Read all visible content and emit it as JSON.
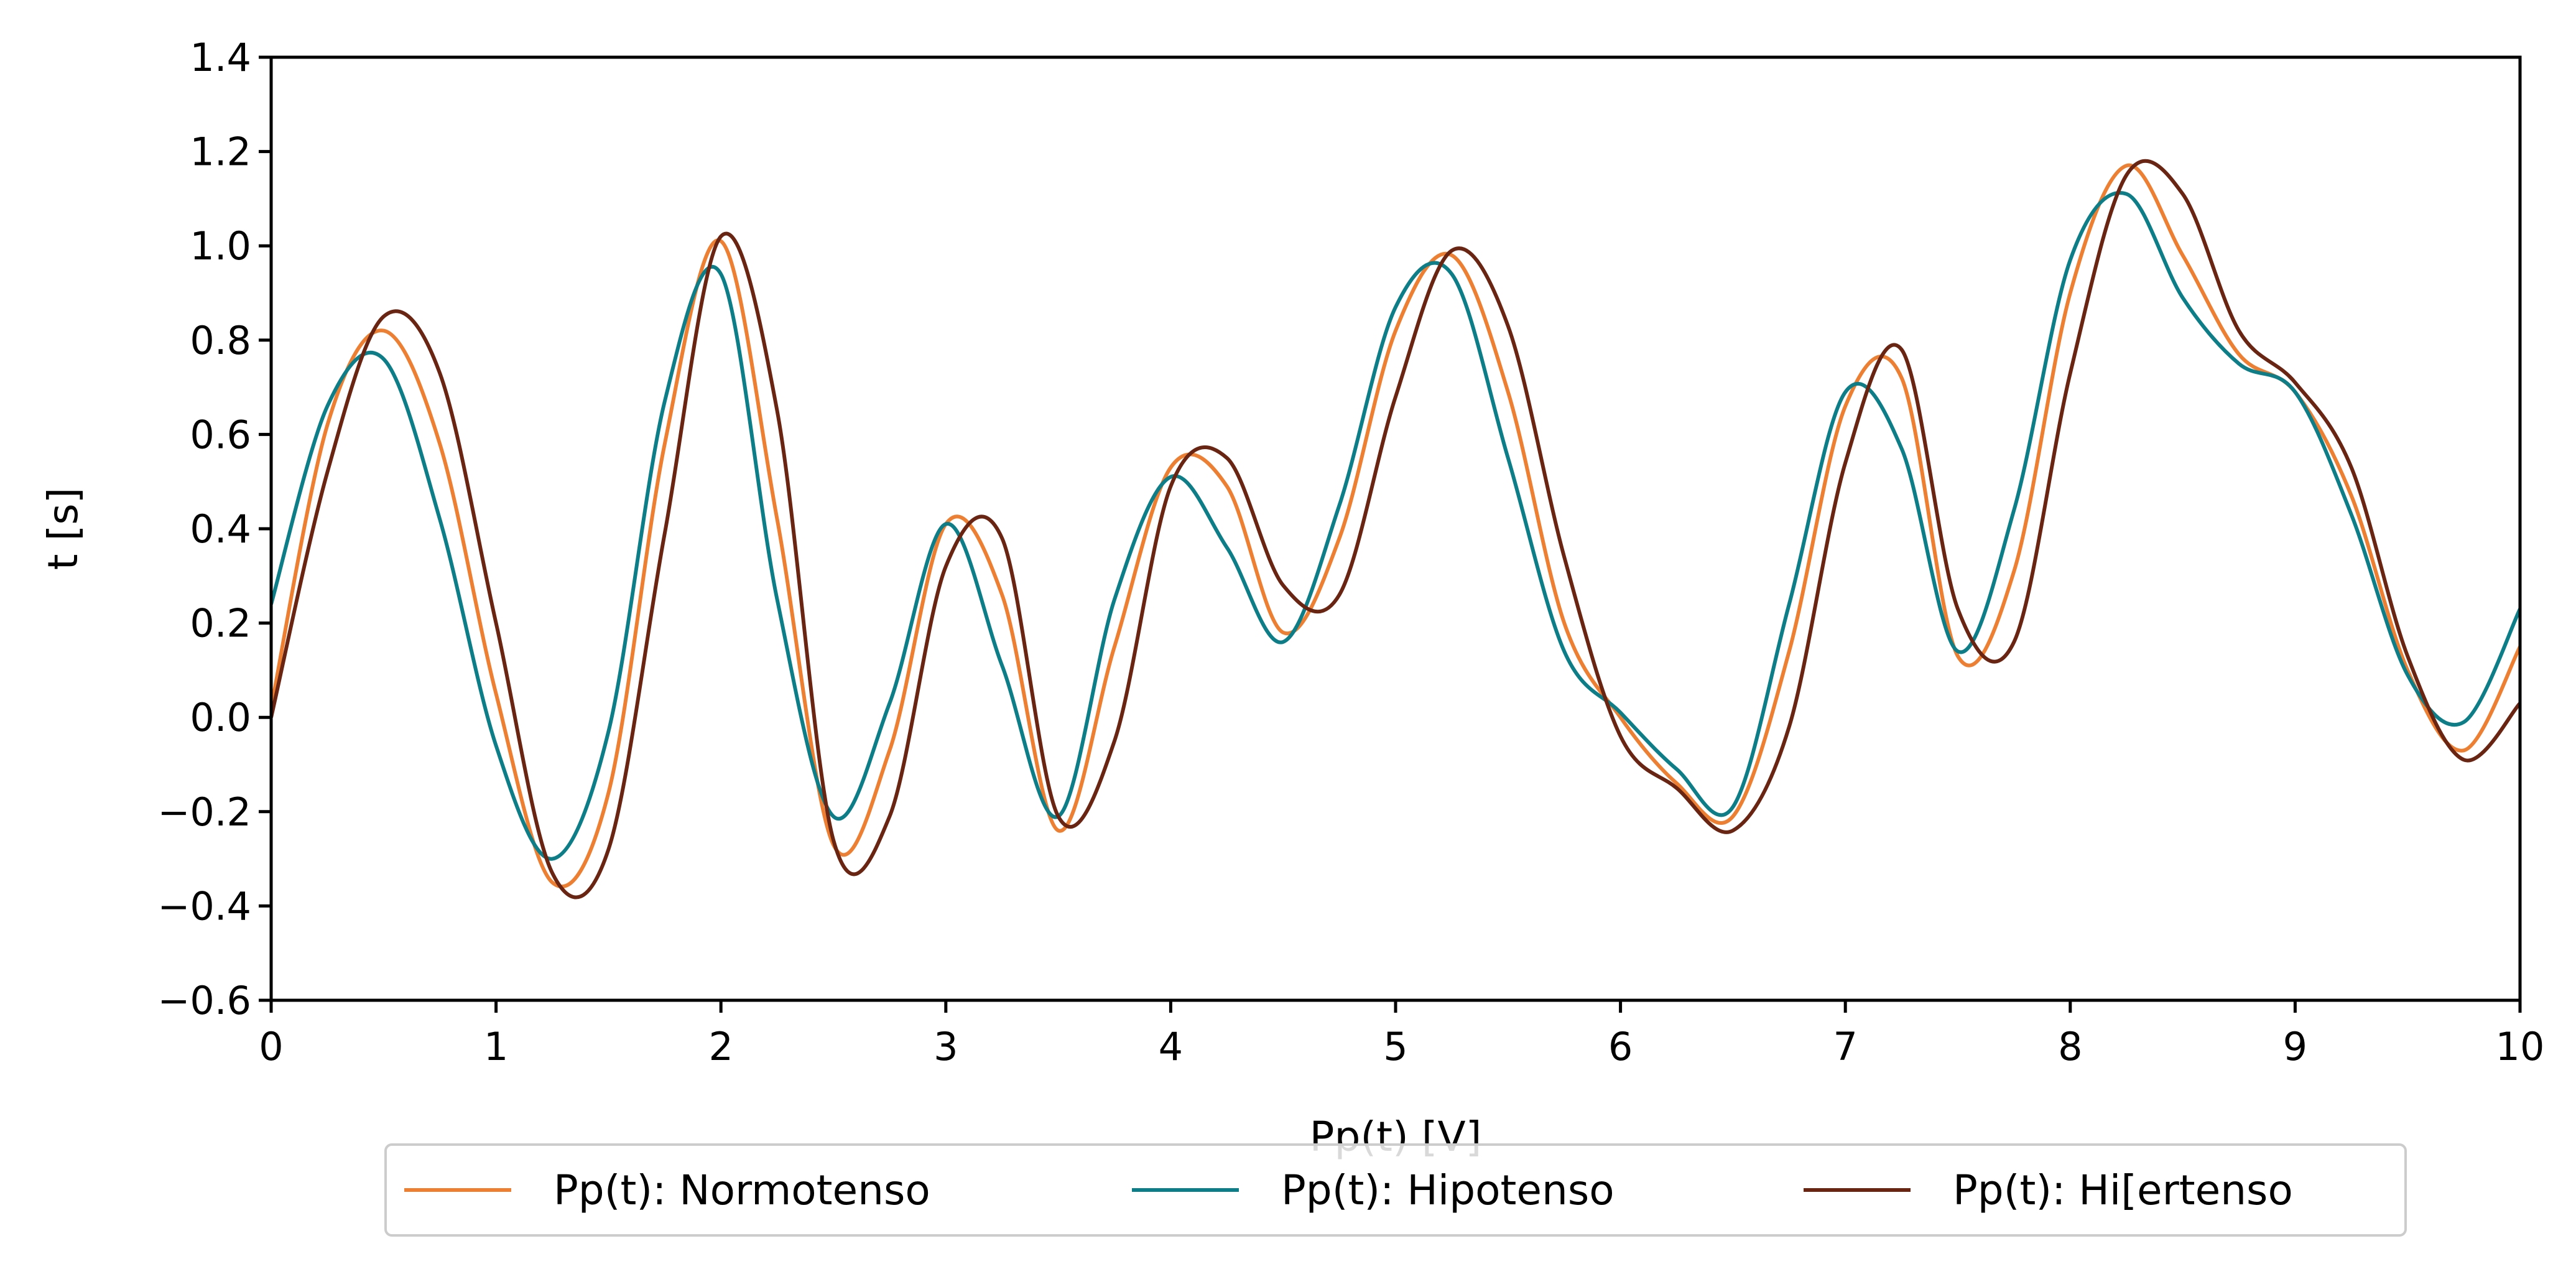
{
  "chart_data": {
    "type": "line",
    "xlabel": "Pp(t) [V]",
    "ylabel": "t [s]",
    "xlim": [
      0,
      10
    ],
    "ylim": [
      -0.6,
      1.4
    ],
    "xticks": [
      0,
      1,
      2,
      3,
      4,
      5,
      6,
      7,
      8,
      9,
      10
    ],
    "yticks": [
      -0.6,
      -0.4,
      -0.2,
      0.0,
      0.2,
      0.4,
      0.6,
      0.8,
      1.0,
      1.2,
      1.4
    ],
    "xtick_labels": [
      "0",
      "1",
      "2",
      "3",
      "4",
      "5",
      "6",
      "7",
      "8",
      "9",
      "10"
    ],
    "ytick_labels": [
      "−0.6",
      "−0.4",
      "−0.2",
      "0.0",
      "0.2",
      "0.4",
      "0.6",
      "0.8",
      "1.0",
      "1.2",
      "1.4"
    ],
    "grid": false,
    "legend_position": "bottom-center",
    "x": [
      0,
      0.25,
      0.5,
      0.75,
      1.0,
      1.25,
      1.5,
      1.75,
      2.0,
      2.25,
      2.5,
      2.75,
      3.0,
      3.25,
      3.5,
      3.75,
      4.0,
      4.25,
      4.5,
      4.75,
      5.0,
      5.25,
      5.5,
      5.75,
      6.0,
      6.25,
      6.5,
      6.75,
      7.0,
      7.25,
      7.5,
      7.75,
      8.0,
      8.25,
      8.5,
      8.75,
      9.0,
      9.25,
      9.5,
      9.75,
      10.0
    ],
    "series": [
      {
        "name": "Pp(t): Normotenso",
        "color": "#ed7f32",
        "values": [
          0.02,
          0.62,
          0.82,
          0.58,
          0.05,
          -0.35,
          -0.16,
          0.58,
          1.01,
          0.42,
          -0.27,
          -0.07,
          0.41,
          0.26,
          -0.24,
          0.15,
          0.53,
          0.49,
          0.18,
          0.38,
          0.82,
          0.98,
          0.69,
          0.2,
          0.0,
          -0.14,
          -0.21,
          0.14,
          0.66,
          0.72,
          0.13,
          0.31,
          0.9,
          1.17,
          0.98,
          0.77,
          0.69,
          0.47,
          0.1,
          -0.07,
          0.15
        ]
      },
      {
        "name": "Pp(t): Hipotenso",
        "color": "#0d7e87",
        "values": [
          0.24,
          0.66,
          0.76,
          0.42,
          -0.06,
          -0.3,
          -0.03,
          0.67,
          0.94,
          0.25,
          -0.21,
          0.03,
          0.41,
          0.11,
          -0.21,
          0.25,
          0.51,
          0.36,
          0.16,
          0.45,
          0.87,
          0.94,
          0.55,
          0.14,
          0.01,
          -0.11,
          -0.19,
          0.24,
          0.69,
          0.57,
          0.14,
          0.44,
          0.97,
          1.11,
          0.89,
          0.75,
          0.69,
          0.43,
          0.09,
          -0.01,
          0.23
        ]
      },
      {
        "name": "Pp(t): Hi[ertenso",
        "color": "#6a2412",
        "values": [
          0.0,
          0.52,
          0.85,
          0.73,
          0.2,
          -0.33,
          -0.28,
          0.39,
          1.02,
          0.65,
          -0.26,
          -0.21,
          0.32,
          0.38,
          -0.21,
          -0.05,
          0.49,
          0.55,
          0.28,
          0.26,
          0.68,
          0.99,
          0.83,
          0.34,
          -0.04,
          -0.15,
          -0.24,
          -0.02,
          0.54,
          0.78,
          0.23,
          0.16,
          0.73,
          1.15,
          1.11,
          0.82,
          0.71,
          0.53,
          0.13,
          -0.09,
          0.03
        ]
      }
    ]
  }
}
